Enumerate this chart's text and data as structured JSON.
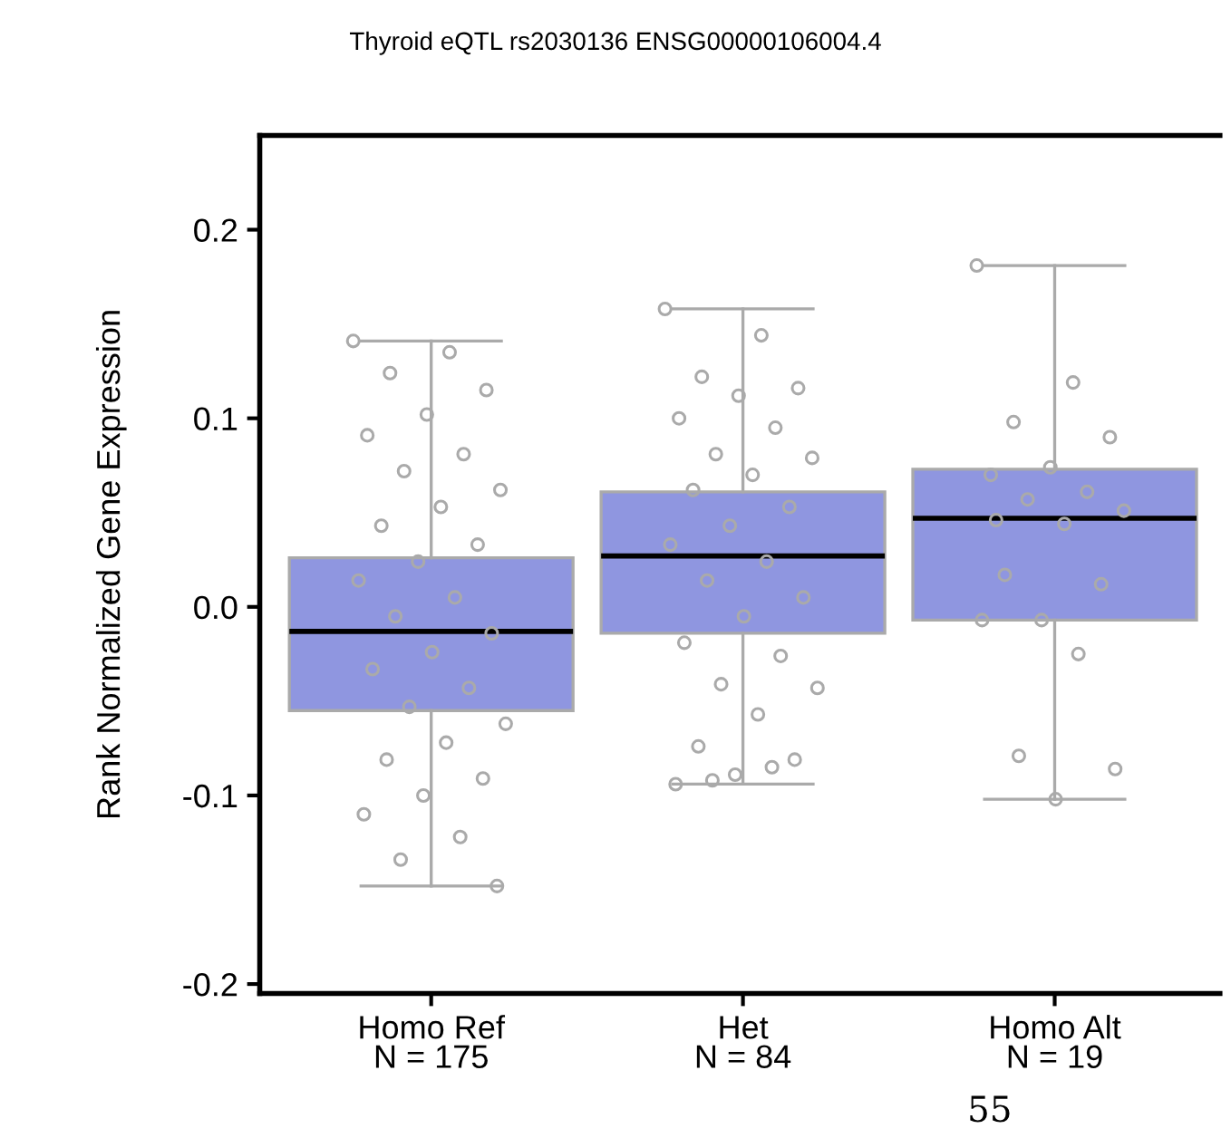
{
  "chart_data": {
    "type": "box",
    "title": "Thyroid eQTL rs2030136 ENSG00000106004.4",
    "ylabel": "Rank Normalized Gene Expression",
    "categories": [
      "Homo Ref\nN = 175",
      "Het\nN = 84",
      "Homo Alt\nN = 19"
    ],
    "color": "#8f96e0",
    "boxes": [
      {
        "low": -0.148,
        "q1": -0.055,
        "median": -0.013,
        "q3": 0.026,
        "high": 0.141
      },
      {
        "low": -0.094,
        "q1": -0.014,
        "median": 0.027,
        "q3": 0.061,
        "high": 0.158
      },
      {
        "low": -0.102,
        "q1": -0.007,
        "median": 0.047,
        "q3": 0.073,
        "high": 0.181
      }
    ],
    "series": [
      {
        "type": "scatter",
        "color": "#aaaaaa",
        "x": [
          "Homo Ref\nN = 175",
          "Homo Ref\nN = 175",
          "Homo Ref\nN = 175",
          "Homo Ref\nN = 175",
          "Homo Ref\nN = 175",
          "Homo Ref\nN = 175",
          "Homo Ref\nN = 175",
          "Homo Ref\nN = 175",
          "Homo Ref\nN = 175",
          "Homo Ref\nN = 175",
          "Homo Ref\nN = 175",
          "Homo Ref\nN = 175",
          "Homo Ref\nN = 175",
          "Homo Ref\nN = 175",
          "Homo Ref\nN = 175",
          "Homo Ref\nN = 175",
          "Homo Ref\nN = 175",
          "Homo Ref\nN = 175",
          "Homo Ref\nN = 175",
          "Homo Ref\nN = 175",
          "Homo Ref\nN = 175",
          "Homo Ref\nN = 175",
          "Homo Ref\nN = 175",
          "Homo Ref\nN = 175",
          "Homo Ref\nN = 175",
          "Homo Ref\nN = 175",
          "Homo Ref\nN = 175",
          "Homo Ref\nN = 175",
          "Homo Ref\nN = 175",
          "Homo Ref\nN = 175"
        ],
        "values": [
          0.141,
          0.135,
          0.124,
          0.115,
          0.102,
          0.091,
          0.081,
          0.072,
          0.062,
          0.053,
          0.043,
          0.033,
          0.024,
          0.014,
          0.005,
          -0.005,
          -0.014,
          -0.024,
          -0.033,
          -0.043,
          -0.053,
          -0.062,
          -0.072,
          -0.081,
          -0.091,
          -0.1,
          -0.11,
          -0.122,
          -0.134,
          -0.148
        ]
      },
      {
        "type": "scatter",
        "color": "#aaaaaa",
        "x": [
          "Het\nN = 84",
          "Het\nN = 84",
          "Het\nN = 84",
          "Het\nN = 84",
          "Het\nN = 84",
          "Het\nN = 84",
          "Het\nN = 84",
          "Het\nN = 84",
          "Het\nN = 84",
          "Het\nN = 84",
          "Het\nN = 84",
          "Het\nN = 84",
          "Het\nN = 84",
          "Het\nN = 84",
          "Het\nN = 84",
          "Het\nN = 84",
          "Het\nN = 84",
          "Het\nN = 84",
          "Het\nN = 84",
          "Het\nN = 84",
          "Het\nN = 84",
          "Het\nN = 84",
          "Het\nN = 84",
          "Het\nN = 84",
          "Het\nN = 84",
          "Het\nN = 84",
          "Het\nN = 84",
          "Het\nN = 84",
          "Het\nN = 84"
        ],
        "values": [
          0.158,
          0.144,
          0.122,
          0.116,
          0.112,
          0.1,
          0.095,
          0.081,
          0.079,
          0.07,
          0.062,
          0.053,
          0.043,
          0.033,
          0.024,
          0.014,
          0.005,
          -0.005,
          -0.019,
          -0.026,
          -0.041,
          -0.043,
          -0.057,
          -0.074,
          -0.081,
          -0.089,
          -0.094,
          -0.085,
          -0.092
        ]
      },
      {
        "type": "scatter",
        "color": "#aaaaaa",
        "x": [
          "Homo Alt\nN = 19",
          "Homo Alt\nN = 19",
          "Homo Alt\nN = 19",
          "Homo Alt\nN = 19",
          "Homo Alt\nN = 19",
          "Homo Alt\nN = 19",
          "Homo Alt\nN = 19",
          "Homo Alt\nN = 19",
          "Homo Alt\nN = 19",
          "Homo Alt\nN = 19",
          "Homo Alt\nN = 19",
          "Homo Alt\nN = 19",
          "Homo Alt\nN = 19",
          "Homo Alt\nN = 19",
          "Homo Alt\nN = 19",
          "Homo Alt\nN = 19",
          "Homo Alt\nN = 19",
          "Homo Alt\nN = 19",
          "Homo Alt\nN = 19"
        ],
        "values": [
          0.181,
          0.119,
          0.098,
          0.09,
          0.074,
          0.07,
          0.061,
          0.057,
          0.051,
          0.044,
          0.017,
          0.012,
          -0.007,
          -0.007,
          -0.025,
          -0.079,
          -0.086,
          -0.102,
          0.046
        ]
      }
    ],
    "ylim": [
      -0.205,
      0.25
    ],
    "yticks": [
      0.2,
      0.1,
      {
        "value": 0.0,
        "label": "0.0"
      },
      {
        "value": -0.1,
        "label": "-0.1"
      },
      {
        "value": -0.2,
        "label": "-0.2"
      }
    ],
    "grid": false,
    "marker": "circle",
    "annotations": [
      "55"
    ]
  }
}
